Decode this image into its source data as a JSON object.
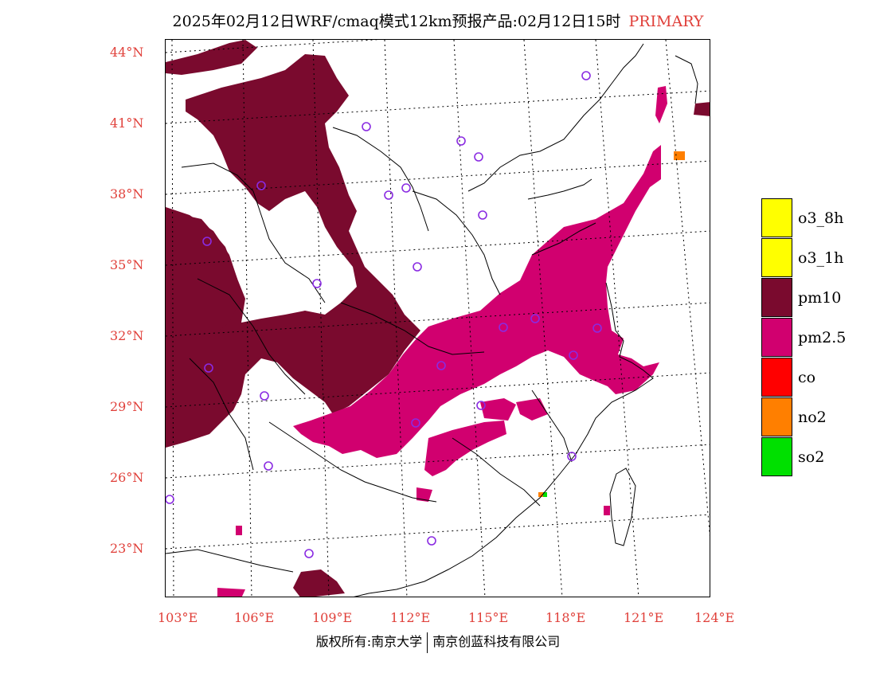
{
  "title": {
    "main": "2025年02月12日WRF/cmaq模式12km预报产品:02月12日15时",
    "tag": "PRIMARY"
  },
  "lat_labels": [
    "44°N",
    "41°N",
    "38°N",
    "35°N",
    "32°N",
    "29°N",
    "26°N",
    "23°N"
  ],
  "lon_labels": [
    "103°E",
    "106°E",
    "109°E",
    "112°E",
    "115°E",
    "118°E",
    "121°E",
    "124°E"
  ],
  "legend": [
    {
      "label": "o3_8h",
      "color": "#ffff00"
    },
    {
      "label": "o3_1h",
      "color": "#ffff00"
    },
    {
      "label": "pm10",
      "color": "#7a0a2e"
    },
    {
      "label": "pm2.5",
      "color": "#d1006f"
    },
    {
      "label": "co",
      "color": "#ff0000"
    },
    {
      "label": "no2",
      "color": "#ff7f00"
    },
    {
      "label": "so2",
      "color": "#00e000"
    }
  ],
  "copyright": {
    "left": "版权所有:南京大学",
    "right": "南京创蓝科技有限公司"
  },
  "colors": {
    "pm10": "#7a0a2e",
    "pm25": "#d1006f",
    "no2": "#ff7f00",
    "so2": "#00e000",
    "city_marker": "#8a2be2",
    "axis_label": "#e0403a"
  },
  "icons": {
    "city_marker": "circle-outline-icon"
  }
}
